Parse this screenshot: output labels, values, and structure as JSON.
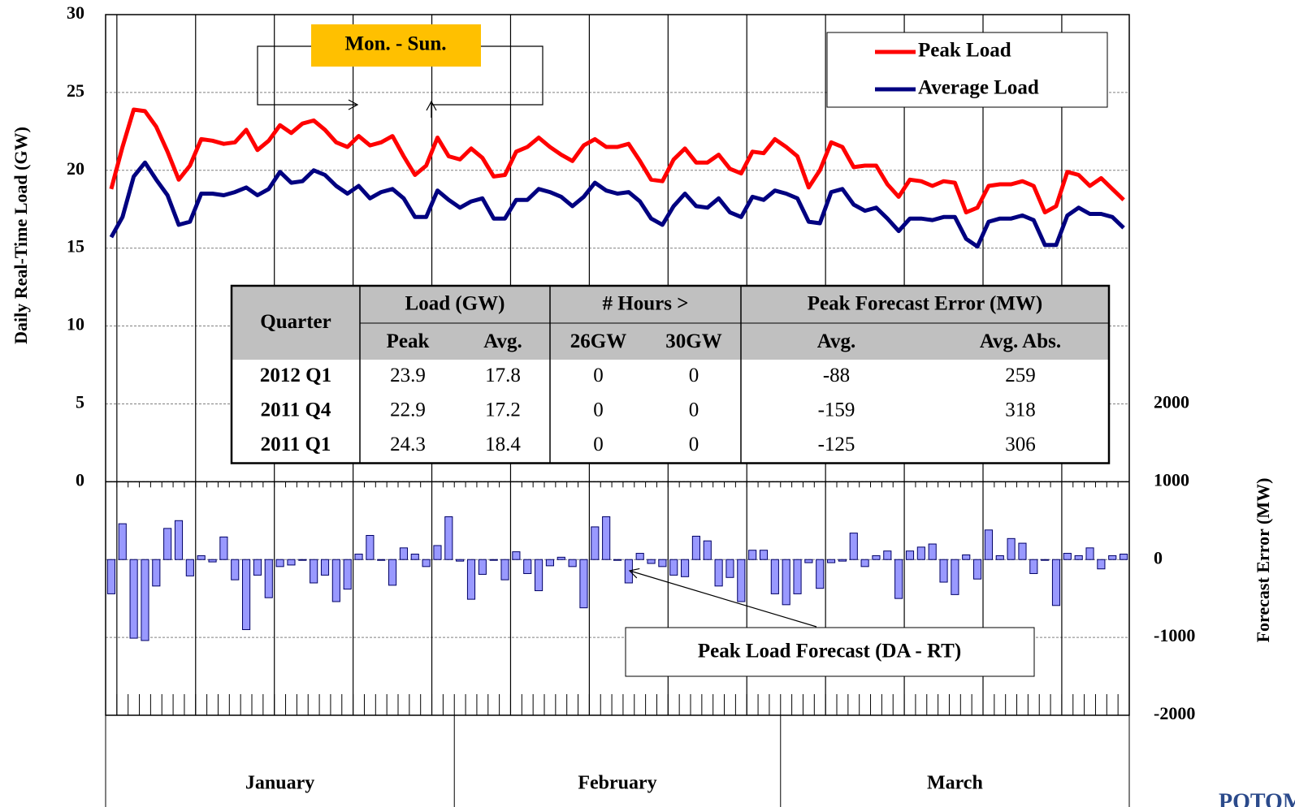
{
  "chart_data": {
    "type": "combo",
    "y_label": "Daily Real-Time Load (GW)",
    "y2_label": "Forecast Error (MW)",
    "categories": [
      null,
      null,
      null,
      null,
      null,
      null,
      null,
      null,
      null,
      null,
      null,
      null,
      null,
      null,
      null,
      null,
      null,
      null,
      null,
      null,
      null,
      null,
      null,
      null,
      null,
      null,
      null,
      null,
      null,
      null,
      null,
      null,
      null,
      null,
      null,
      null,
      null,
      null,
      null,
      null,
      null,
      null,
      null,
      null,
      null,
      null,
      null,
      null,
      null,
      null,
      null,
      null,
      null,
      null,
      null,
      null,
      null,
      null,
      null,
      null,
      null,
      null,
      null,
      null,
      null,
      null,
      null,
      null,
      null,
      null,
      null,
      null,
      null,
      null,
      null,
      null,
      null,
      null,
      null,
      null,
      null,
      null,
      null,
      null,
      null,
      null,
      null,
      null,
      null,
      null,
      null
    ],
    "category_groups": [
      {
        "label": "January",
        "count": 31
      },
      {
        "label": "February",
        "count": 29
      },
      {
        "label": "March",
        "count": 31
      }
    ],
    "ylim": [
      -15,
      30
    ],
    "yticks": [
      0,
      5,
      10,
      15,
      20,
      25,
      30
    ],
    "y2lim": [
      -2000,
      7000
    ],
    "y2ticks": [
      -2000,
      -1000,
      0,
      1000,
      2000
    ],
    "grid": true,
    "series": [
      {
        "name": "Peak Load",
        "type": "line",
        "color": "#ff0000",
        "values": [
          18.8,
          21.5,
          23.9,
          23.8,
          22.8,
          21.2,
          19.4,
          20.3,
          22.0,
          21.9,
          21.7,
          21.8,
          22.6,
          21.3,
          21.9,
          22.9,
          22.4,
          23.0,
          23.2,
          22.6,
          21.8,
          21.5,
          22.2,
          21.6,
          21.8,
          22.2,
          20.9,
          19.7,
          20.3,
          22.1,
          20.9,
          20.7,
          21.4,
          20.8,
          19.6,
          19.7,
          21.2,
          21.5,
          22.1,
          21.5,
          21.0,
          20.6,
          21.6,
          22.0,
          21.5,
          21.5,
          21.7,
          20.6,
          19.4,
          19.3,
          20.7,
          21.4,
          20.5,
          20.5,
          21.0,
          20.1,
          19.8,
          21.2,
          21.1,
          22.0,
          21.5,
          20.9,
          18.9,
          20.0,
          21.8,
          21.5,
          20.2,
          20.3,
          20.3,
          19.1,
          18.3,
          19.4,
          19.3,
          19.0,
          19.3,
          19.2,
          17.3,
          17.6,
          19.0,
          19.1,
          19.1,
          19.3,
          19.0,
          17.3,
          17.7,
          19.9,
          19.7,
          19.0,
          19.5,
          18.8,
          18.1
        ]
      },
      {
        "name": "Average Load",
        "type": "line",
        "color": "#000080",
        "values": [
          15.7,
          17.0,
          19.6,
          20.5,
          19.4,
          18.4,
          16.5,
          16.7,
          18.5,
          18.5,
          18.4,
          18.6,
          18.9,
          18.4,
          18.8,
          19.9,
          19.2,
          19.3,
          20.0,
          19.7,
          19.0,
          18.5,
          19.0,
          18.2,
          18.6,
          18.8,
          18.2,
          17.0,
          17.0,
          18.7,
          18.1,
          17.6,
          18.0,
          18.2,
          16.9,
          16.9,
          18.1,
          18.1,
          18.8,
          18.6,
          18.3,
          17.7,
          18.3,
          19.2,
          18.7,
          18.5,
          18.6,
          18.0,
          16.9,
          16.5,
          17.7,
          18.5,
          17.7,
          17.6,
          18.2,
          17.3,
          17.0,
          18.3,
          18.1,
          18.7,
          18.5,
          18.2,
          16.7,
          16.6,
          18.6,
          18.8,
          17.8,
          17.4,
          17.6,
          16.9,
          16.1,
          16.9,
          16.9,
          16.8,
          17.0,
          17.0,
          15.6,
          15.1,
          16.7,
          16.9,
          16.9,
          17.1,
          16.8,
          15.2,
          15.2,
          17.1,
          17.6,
          17.2,
          17.2,
          17.0,
          16.3
        ]
      },
      {
        "type": "bar",
        "axis": "y2",
        "color": "#9999ff",
        "values": [
          -440,
          460,
          -1010,
          -1040,
          -340,
          400,
          500,
          -210,
          50,
          -30,
          290,
          -260,
          -900,
          -200,
          -490,
          -90,
          -70,
          -10,
          -300,
          -200,
          -540,
          -380,
          70,
          310,
          -10,
          -330,
          150,
          70,
          -90,
          180,
          550,
          -20,
          -510,
          -190,
          -10,
          -260,
          100,
          -180,
          -400,
          -80,
          30,
          -90,
          -620,
          420,
          550,
          -10,
          -300,
          80,
          -50,
          -90,
          -200,
          -220,
          300,
          240,
          -340,
          -230,
          -540,
          120,
          120,
          -440,
          -580,
          -440,
          -40,
          -370,
          -40,
          -20,
          340,
          -90,
          50,
          110,
          -500,
          110,
          160,
          200,
          -290,
          -450,
          60,
          -250,
          380,
          50,
          270,
          210,
          -180,
          -10,
          -590,
          80,
          50,
          150,
          -120,
          50,
          70
        ]
      }
    ],
    "legend_position": "upper right",
    "annotations": [
      {
        "text": "Mon. - Sun."
      },
      {
        "text": "Peak Load Forecast (DA - RT)"
      }
    ]
  },
  "table": {
    "header_top": [
      "Quarter",
      "Load (GW)",
      "# Hours >",
      "Peak Forecast Error (MW)"
    ],
    "header_sub": [
      "Peak",
      "Avg.",
      "26GW",
      "30GW",
      "Avg.",
      "Avg. Abs."
    ],
    "rows": [
      [
        "2012 Q1",
        23.9,
        17.8,
        0,
        0,
        -88,
        259
      ],
      [
        "2011 Q4",
        22.9,
        17.2,
        0,
        0,
        -159,
        318
      ],
      [
        "2011 Q1",
        24.3,
        18.4,
        0,
        0,
        -125,
        306
      ]
    ]
  },
  "logo": "POTOMAC"
}
